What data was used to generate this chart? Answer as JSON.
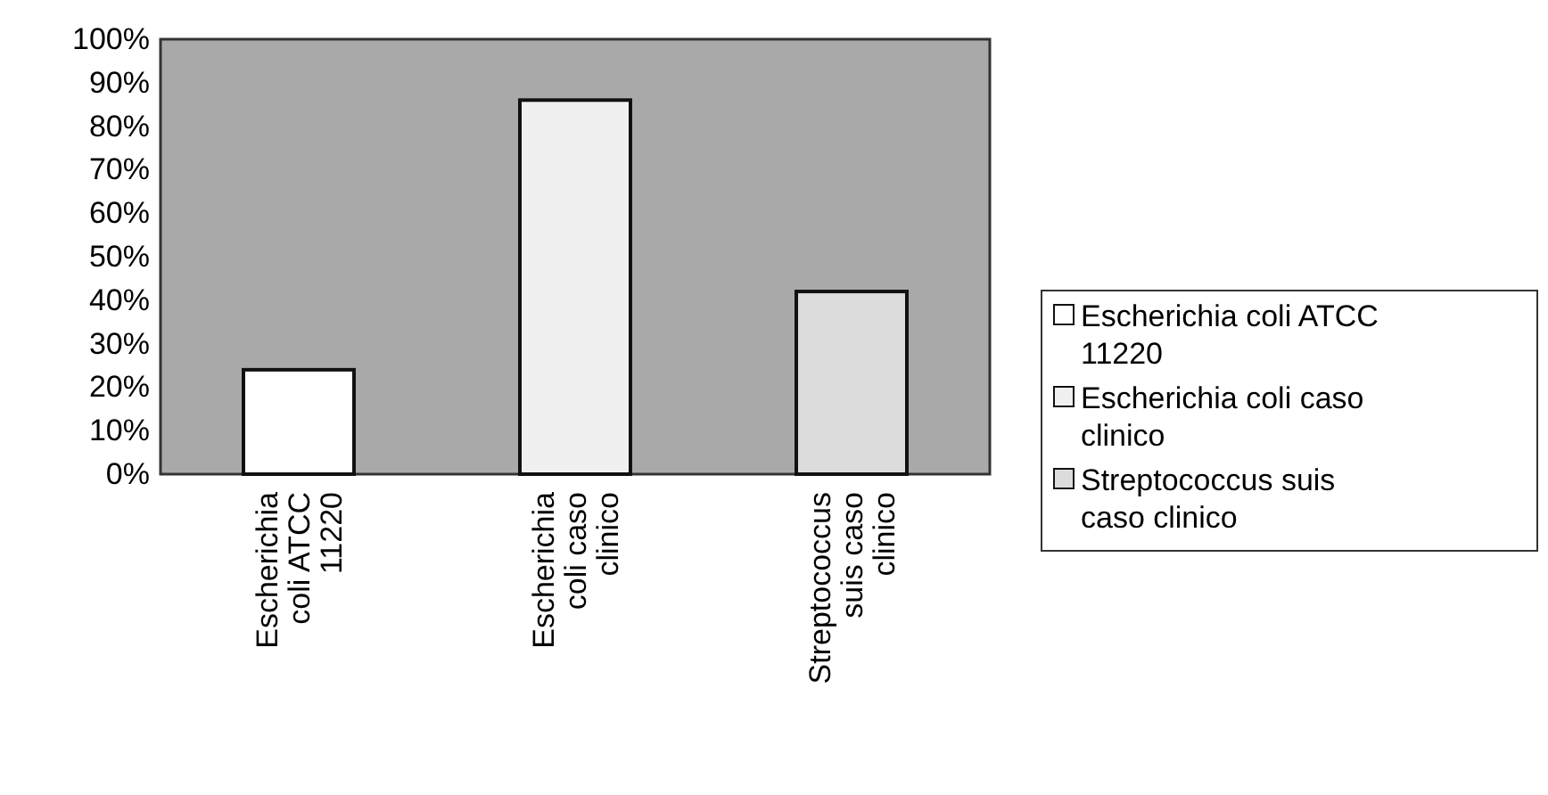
{
  "chart_data": {
    "type": "bar",
    "categories": [
      "Escherichia coli ATCC 11220",
      "Escherichia coli caso clinico",
      "Streptococcus suis caso clinico"
    ],
    "series": [
      {
        "name": "Escherichia coli ATCC 11220",
        "color": "#ffffff",
        "values": [
          24,
          null,
          null
        ]
      },
      {
        "name": "Escherichia coli caso clinico",
        "color": "#f0f0f0",
        "values": [
          null,
          86,
          null
        ]
      },
      {
        "name": "Streptococcus suis caso clinico",
        "color": "#dcdcdc",
        "values": [
          null,
          null,
          42
        ]
      }
    ],
    "ylim": [
      0,
      100
    ],
    "yticks": [
      {
        "value": 0,
        "label": "0%"
      },
      {
        "value": 10,
        "label": "10%"
      },
      {
        "value": 20,
        "label": "20%"
      },
      {
        "value": 30,
        "label": "30%"
      },
      {
        "value": 40,
        "label": "40%"
      },
      {
        "value": 50,
        "label": "50%"
      },
      {
        "value": 60,
        "label": "60%"
      },
      {
        "value": 70,
        "label": "70%"
      },
      {
        "value": 80,
        "label": "80%"
      },
      {
        "value": 90,
        "label": "90%"
      },
      {
        "value": 100,
        "label": "100%"
      }
    ],
    "grid": false,
    "legend": "right"
  }
}
